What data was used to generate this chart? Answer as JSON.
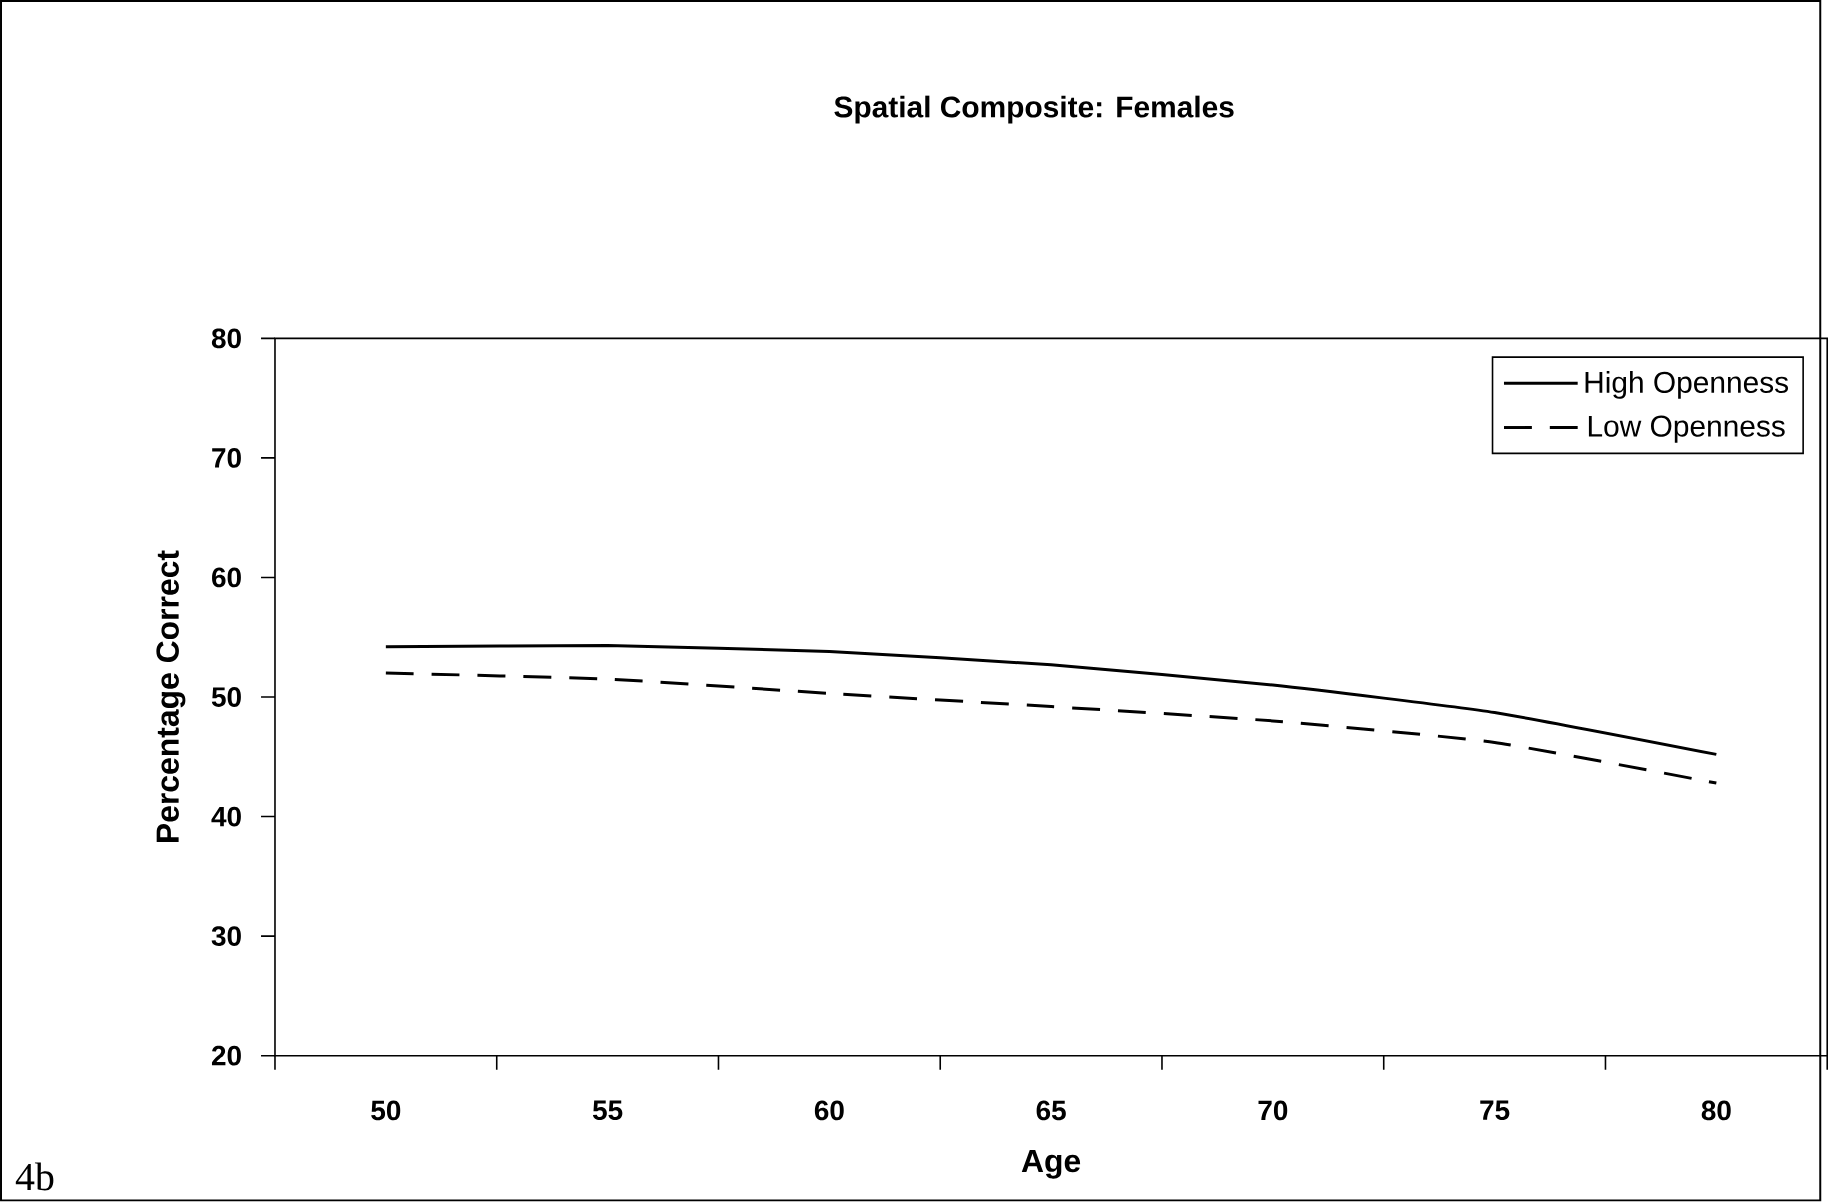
{
  "chart_data": {
    "type": "line",
    "title": "Spatial Composite: Females",
    "xlabel": "Age",
    "ylabel": "Percentage Correct",
    "categories": [
      "50",
      "55",
      "60",
      "65",
      "70",
      "75",
      "80"
    ],
    "series": [
      {
        "name": "High Openness",
        "color": "#000000",
        "line_style": "solid",
        "values": [
          54.2,
          54.3,
          53.8,
          52.7,
          51.0,
          48.7,
          45.2
        ]
      },
      {
        "name": "Low Openness",
        "color": "#000000",
        "line_style": "dashed",
        "values": [
          52.0,
          51.5,
          50.3,
          49.2,
          48.0,
          46.2,
          42.8
        ]
      }
    ],
    "ylim": [
      20,
      80
    ],
    "yticks": [
      20,
      30,
      40,
      50,
      60,
      70,
      80
    ],
    "grid": false,
    "legend": "top right",
    "marker": "none",
    "annotations": [
      "4b"
    ]
  }
}
